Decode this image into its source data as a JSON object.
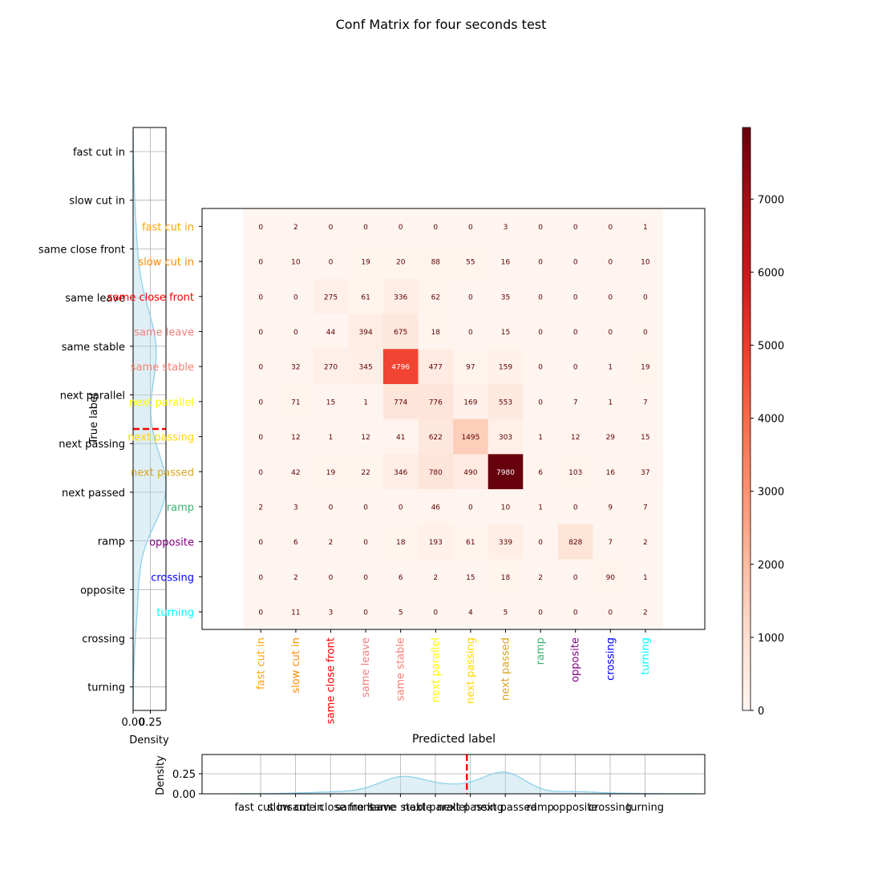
{
  "chart_data": {
    "type": "heatmap",
    "title": "Conf Matrix for four seconds test",
    "xlabel": "Predicted label",
    "ylabel": "True label",
    "colormap": "Reds",
    "colorbar": {
      "range": [
        0,
        7980
      ],
      "ticks": [
        0,
        1000,
        2000,
        3000,
        4000,
        5000,
        6000,
        7000
      ]
    },
    "labels": [
      "fast cut in",
      "slow cut in",
      "same close front",
      "same leave",
      "same stable",
      "next parallel",
      "next passing",
      "next passed",
      "ramp",
      "opposite",
      "crossing",
      "turning"
    ],
    "label_colors": [
      "#ffa500",
      "#ff8c00",
      "#ff0000",
      "#f08080",
      "#fa8072",
      "#ffff00",
      "#ffd700",
      "#daa520",
      "#3cb371",
      "#800080",
      "#0000ff",
      "#00ffff"
    ],
    "matrix": [
      [
        0,
        2,
        0,
        0,
        0,
        0,
        0,
        3,
        0,
        0,
        0,
        1
      ],
      [
        0,
        10,
        0,
        19,
        20,
        88,
        55,
        16,
        0,
        0,
        0,
        10
      ],
      [
        0,
        0,
        275,
        61,
        336,
        62,
        0,
        35,
        0,
        0,
        0,
        0
      ],
      [
        0,
        0,
        44,
        394,
        675,
        18,
        0,
        15,
        0,
        0,
        0,
        0
      ],
      [
        0,
        32,
        270,
        345,
        4796,
        477,
        97,
        159,
        0,
        0,
        1,
        19
      ],
      [
        0,
        71,
        15,
        1,
        774,
        776,
        169,
        553,
        0,
        7,
        1,
        7
      ],
      [
        0,
        12,
        1,
        12,
        41,
        622,
        1495,
        303,
        1,
        12,
        29,
        15
      ],
      [
        0,
        42,
        19,
        22,
        346,
        780,
        490,
        7980,
        6,
        103,
        16,
        37
      ],
      [
        2,
        3,
        0,
        0,
        0,
        46,
        0,
        10,
        1,
        0,
        9,
        7
      ],
      [
        0,
        6,
        2,
        0,
        18,
        193,
        61,
        339,
        0,
        828,
        7,
        2
      ],
      [
        0,
        2,
        0,
        0,
        6,
        2,
        15,
        18,
        2,
        0,
        90,
        1
      ],
      [
        0,
        11,
        3,
        0,
        5,
        0,
        4,
        5,
        0,
        0,
        0,
        2
      ]
    ],
    "marginal_true": {
      "xlabel": "Density",
      "ylabel": "True label",
      "x_ticks": [
        "0.00",
        "0.25"
      ],
      "categories": [
        "fast cut in",
        "slow cut in",
        "same close front",
        "same leave",
        "same stable",
        "next parallel",
        "next passing",
        "next passed",
        "ramp",
        "opposite",
        "crossing",
        "turning"
      ],
      "mean_marker_index": 5.7,
      "line_color": "#87ceeb",
      "fill_color": "#add8e6"
    },
    "marginal_pred": {
      "ylabel": "Density",
      "y_ticks": [
        "0.00",
        "0.25"
      ],
      "categories": [
        "fast cut in",
        "slow cut in",
        "same close front",
        "same leave",
        "same stable",
        "next parallel",
        "next passing",
        "next passed",
        "ramp",
        "opposite",
        "crossing",
        "turning"
      ],
      "mean_marker_index": 5.9,
      "line_color": "#87ceeb",
      "fill_color": "#add8e6"
    },
    "grid": true
  }
}
